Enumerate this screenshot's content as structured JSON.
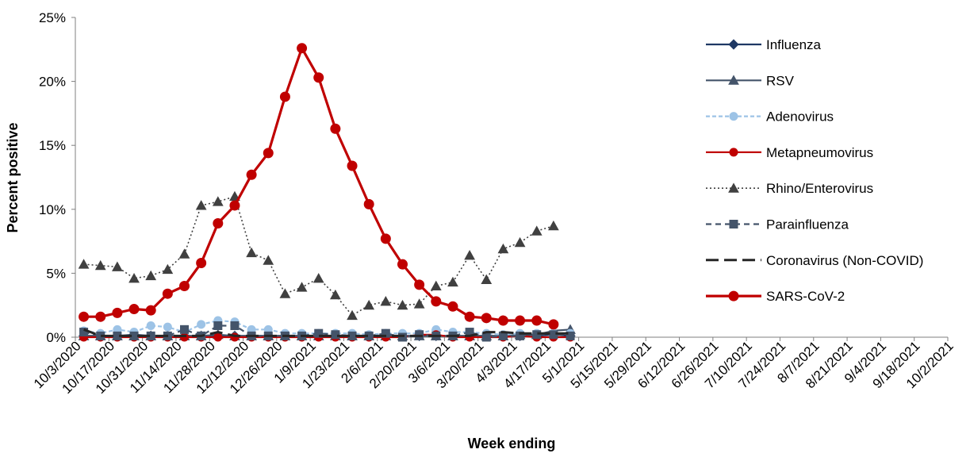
{
  "chart_data": {
    "type": "line",
    "title": "",
    "xlabel": "Week ending",
    "ylabel": "Percent positive",
    "ylim": [
      0,
      25
    ],
    "y_ticks": [
      "0%",
      "5%",
      "10%",
      "15%",
      "20%",
      "25%"
    ],
    "y_tick_values": [
      0,
      5,
      10,
      15,
      20,
      25
    ],
    "grid": false,
    "legend_position": "right",
    "x_tick_labels": [
      "10/3/2020",
      "10/17/2020",
      "10/31/2020",
      "11/14/2020",
      "11/28/2020",
      "12/12/2020",
      "12/26/2020",
      "1/9/2021",
      "1/23/2021",
      "2/6/2021",
      "2/20/2021",
      "3/6/2021",
      "3/20/2021",
      "4/3/2021",
      "4/17/2021",
      "5/1/2021",
      "5/15/2021",
      "5/29/2021",
      "6/12/2021",
      "6/26/2021",
      "7/10/2021",
      "7/24/2021",
      "8/7/2021",
      "8/21/2021",
      "9/4/2021",
      "9/18/2021",
      "10/2/2021"
    ],
    "x": [
      "10/3/2020",
      "10/10/2020",
      "10/17/2020",
      "10/24/2020",
      "10/31/2020",
      "11/7/2020",
      "11/14/2020",
      "11/21/2020",
      "11/28/2020",
      "12/5/2020",
      "12/12/2020",
      "12/19/2020",
      "12/26/2020",
      "1/2/2021",
      "1/9/2021",
      "1/16/2021",
      "1/23/2021",
      "1/30/2021",
      "2/6/2021",
      "2/13/2021",
      "2/20/2021",
      "2/27/2021",
      "3/6/2021",
      "3/13/2021",
      "3/20/2021",
      "3/27/2021",
      "4/3/2021",
      "4/10/2021",
      "4/17/2021",
      "4/24/2021"
    ],
    "series": [
      {
        "name": "Influenza",
        "color": "#1f3864",
        "marker": "diamond",
        "line": "solid",
        "values": [
          0.1,
          0.1,
          0.1,
          0.2,
          0.1,
          0.1,
          0.1,
          0.1,
          0.1,
          0.1,
          0.1,
          0.1,
          0.1,
          0.1,
          0.1,
          0.1,
          0.1,
          0.1,
          0.1,
          0.1,
          0.1,
          0.1,
          0.1,
          0.1,
          0.1,
          0.1,
          0.1,
          0.1,
          0.2,
          0.1
        ]
      },
      {
        "name": "RSV",
        "color": "#44546a",
        "marker": "triangle",
        "line": "solid",
        "values": [
          0.1,
          0.1,
          0.1,
          0.1,
          0.1,
          0.1,
          0.1,
          0.1,
          0.2,
          0.1,
          0.1,
          0.1,
          0.1,
          0.1,
          0.1,
          0.1,
          0.1,
          0.1,
          0.1,
          0.1,
          0.1,
          0.1,
          0.1,
          0.1,
          0.1,
          0.1,
          0.2,
          0.2,
          0.5,
          0.6
        ]
      },
      {
        "name": "Adenovirus",
        "color": "#9dc3e6",
        "marker": "circle",
        "line": "dashed-fine",
        "values": [
          0.5,
          0.3,
          0.6,
          0.4,
          0.9,
          0.8,
          0.4,
          1.0,
          1.3,
          1.2,
          0.6,
          0.6,
          0.3,
          0.3,
          0.3,
          0.3,
          0.3,
          0.2,
          0.3,
          0.3,
          0.3,
          0.6,
          0.4,
          0.4,
          0.3,
          0.2,
          0.3,
          0.3,
          0.3,
          0.3
        ]
      },
      {
        "name": "Metapneumovirus",
        "color": "#c00000",
        "marker": "circle",
        "line": "solid",
        "values": [
          0.0,
          0.0,
          0.0,
          0.0,
          0.0,
          0.0,
          0.0,
          0.0,
          0.0,
          0.0,
          0.0,
          0.0,
          0.0,
          0.0,
          0.0,
          0.0,
          0.0,
          0.0,
          0.0,
          0.0,
          0.2,
          0.2,
          0.0,
          0.0,
          0.0,
          0.0,
          0.1,
          0.0,
          0.0,
          0.0
        ]
      },
      {
        "name": "Rhino/Enterovirus",
        "color": "#404040",
        "marker": "triangle",
        "line": "dotted",
        "values": [
          5.7,
          5.6,
          5.5,
          4.6,
          4.8,
          5.3,
          6.5,
          10.3,
          10.6,
          11.0,
          6.6,
          6.0,
          3.4,
          3.9,
          4.6,
          3.3,
          1.7,
          2.5,
          2.8,
          2.5,
          2.6,
          4.0,
          4.3,
          6.4,
          4.5,
          6.9,
          7.4,
          8.3,
          8.7,
          null
        ]
      },
      {
        "name": "Parainfluenza",
        "color": "#44546a",
        "marker": "square",
        "line": "dashed",
        "values": [
          0.4,
          0.1,
          0.1,
          0.1,
          0.1,
          0.1,
          0.6,
          0.1,
          0.9,
          0.9,
          0.1,
          0.1,
          0.1,
          0.1,
          0.3,
          0.2,
          0.1,
          0.1,
          0.3,
          0.0,
          0.2,
          0.1,
          0.1,
          0.4,
          0.0,
          0.1,
          0.1,
          0.2,
          0.2,
          0.1
        ]
      },
      {
        "name": "Coronavirus (Non-COVID)",
        "color": "#262626",
        "marker": "none",
        "line": "long-dash",
        "values": [
          0.6,
          0.1,
          0.1,
          0.1,
          0.1,
          0.1,
          0.1,
          0.1,
          0.4,
          0.1,
          0.1,
          0.1,
          0.1,
          0.1,
          0.1,
          0.1,
          0.1,
          0.1,
          0.1,
          0.1,
          0.1,
          0.1,
          0.1,
          0.1,
          0.4,
          0.4,
          0.3,
          0.3,
          0.3,
          0.3
        ]
      },
      {
        "name": "SARS-CoV-2",
        "color": "#c00000",
        "marker": "circle",
        "line": "solid-thick",
        "values": [
          1.6,
          1.6,
          1.9,
          2.2,
          2.1,
          3.4,
          4.0,
          5.8,
          8.9,
          10.3,
          12.7,
          14.4,
          18.8,
          22.6,
          20.3,
          16.3,
          13.4,
          10.4,
          7.7,
          5.7,
          4.1,
          2.8,
          2.4,
          1.6,
          1.5,
          1.3,
          1.3,
          1.3,
          1.0,
          null
        ]
      }
    ]
  }
}
